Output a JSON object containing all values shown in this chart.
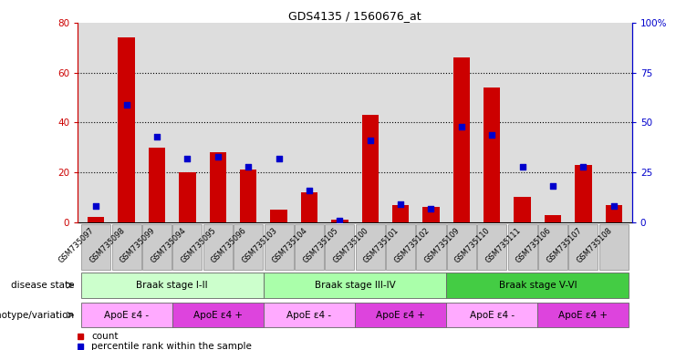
{
  "title": "GDS4135 / 1560676_at",
  "samples": [
    "GSM735097",
    "GSM735098",
    "GSM735099",
    "GSM735094",
    "GSM735095",
    "GSM735096",
    "GSM735103",
    "GSM735104",
    "GSM735105",
    "GSM735100",
    "GSM735101",
    "GSM735102",
    "GSM735109",
    "GSM735110",
    "GSM735111",
    "GSM735106",
    "GSM735107",
    "GSM735108"
  ],
  "counts": [
    2,
    74,
    30,
    20,
    28,
    21,
    5,
    12,
    1,
    43,
    7,
    6,
    66,
    54,
    10,
    3,
    23,
    7
  ],
  "percentile_ranks": [
    8,
    59,
    43,
    32,
    33,
    28,
    32,
    16,
    1,
    41,
    9,
    7,
    48,
    44,
    28,
    18,
    28,
    8
  ],
  "ylim_left": [
    0,
    80
  ],
  "ylim_right": [
    0,
    100
  ],
  "yticks_left": [
    0,
    20,
    40,
    60,
    80
  ],
  "yticks_right": [
    0,
    25,
    50,
    75,
    100
  ],
  "bar_color": "#cc0000",
  "dot_color": "#0000cc",
  "left_axis_color": "#cc0000",
  "right_axis_color": "#0000cc",
  "grid_color": "#000000",
  "disease_state_label": "disease state",
  "genotype_label": "genotype/variation",
  "braak_groups": [
    {
      "label": "Braak stage I-II",
      "start": 0,
      "end": 6,
      "color": "#ccffcc"
    },
    {
      "label": "Braak stage III-IV",
      "start": 6,
      "end": 12,
      "color": "#aaffaa"
    },
    {
      "label": "Braak stage V-VI",
      "start": 12,
      "end": 18,
      "color": "#44cc44"
    }
  ],
  "genotype_groups": [
    {
      "label": "ApoE ε4 -",
      "start": 0,
      "end": 3,
      "color": "#ffaaff"
    },
    {
      "label": "ApoE ε4 +",
      "start": 3,
      "end": 6,
      "color": "#dd44dd"
    },
    {
      "label": "ApoE ε4 -",
      "start": 6,
      "end": 9,
      "color": "#ffaaff"
    },
    {
      "label": "ApoE ε4 +",
      "start": 9,
      "end": 12,
      "color": "#dd44dd"
    },
    {
      "label": "ApoE ε4 -",
      "start": 12,
      "end": 15,
      "color": "#ffaaff"
    },
    {
      "label": "ApoE ε4 +",
      "start": 15,
      "end": 18,
      "color": "#dd44dd"
    }
  ],
  "legend_count_label": "count",
  "legend_pct_label": "percentile rank within the sample",
  "bg_color": "#ffffff",
  "plot_bg_color": "#dddddd",
  "xtick_bg_color": "#cccccc",
  "xtick_border_color": "#888888"
}
